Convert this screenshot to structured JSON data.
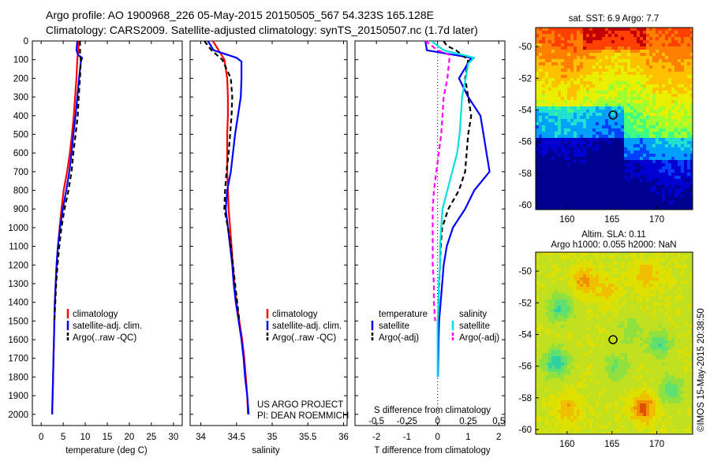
{
  "header": {
    "title_line1": "Argo profile: AO 1900968_226 05-May-2015 20150505_567 54.323S 165.128E",
    "title_line2": "Climatology: CARS2009. Satellite-adjusted climatology: synTS_20150507.nc (1.7d later)"
  },
  "colors": {
    "climatology": "#ff0000",
    "satellite": "#0000ff",
    "argo": "#000000",
    "salinity_satellite": "#00e0e0",
    "salinity_argo": "#ff00ff"
  },
  "chart_data": [
    {
      "type": "line",
      "name": "temperature",
      "xlabel": "temperature (deg C)",
      "ylabel": "",
      "xlim": [
        -2,
        32
      ],
      "ylim": [
        2060,
        0
      ],
      "x_ticks": [
        "0",
        "5",
        "10",
        "15",
        "20",
        "25",
        "30"
      ],
      "y_ticks": [
        "0",
        "100",
        "200",
        "300",
        "400",
        "500",
        "600",
        "700",
        "800",
        "900",
        "1000",
        "1100",
        "1200",
        "1300",
        "1400",
        "1500",
        "1600",
        "1700",
        "1800",
        "1900",
        "2000"
      ],
      "legend": [
        "climatology",
        "satellite-adj. clim.",
        "Argo(..raw -QC)"
      ],
      "series": [
        {
          "name": "climatology",
          "points": [
            [
              8.6,
              0
            ],
            [
              8.5,
              25
            ],
            [
              8.4,
              50
            ],
            [
              8.3,
              75
            ],
            [
              8.2,
              100
            ],
            [
              8.0,
              200
            ],
            [
              7.7,
              300
            ],
            [
              7.4,
              400
            ],
            [
              7.0,
              500
            ],
            [
              6.5,
              600
            ],
            [
              5.9,
              700
            ],
            [
              5.1,
              800
            ],
            [
              4.6,
              900
            ],
            [
              4.2,
              1000
            ],
            [
              3.8,
              1100
            ],
            [
              3.5,
              1200
            ],
            [
              3.3,
              1300
            ],
            [
              3.1,
              1400
            ],
            [
              3.0,
              1500
            ],
            [
              2.9,
              1600
            ],
            [
              2.8,
              1700
            ],
            [
              2.7,
              1800
            ],
            [
              2.6,
              1900
            ],
            [
              2.5,
              2000
            ]
          ]
        },
        {
          "name": "satellite-adj. clim.",
          "points": [
            [
              8.2,
              0
            ],
            [
              8.1,
              25
            ],
            [
              8.0,
              50
            ],
            [
              8.4,
              75
            ],
            [
              9.3,
              90
            ],
            [
              9.0,
              110
            ],
            [
              8.6,
              200
            ],
            [
              8.2,
              300
            ],
            [
              7.8,
              400
            ],
            [
              7.3,
              500
            ],
            [
              6.9,
              600
            ],
            [
              6.4,
              700
            ],
            [
              5.7,
              800
            ],
            [
              4.9,
              900
            ],
            [
              4.3,
              1000
            ],
            [
              3.8,
              1100
            ],
            [
              3.5,
              1200
            ],
            [
              3.3,
              1300
            ],
            [
              3.1,
              1400
            ],
            [
              3.0,
              1500
            ],
            [
              2.9,
              1600
            ],
            [
              2.8,
              1700
            ],
            [
              2.7,
              1800
            ],
            [
              2.6,
              1900
            ],
            [
              2.5,
              2000
            ]
          ]
        },
        {
          "name": "Argo(..raw -QC)",
          "points": [
            [
              8.8,
              0
            ],
            [
              8.8,
              50
            ],
            [
              8.8,
              75
            ],
            [
              9.0,
              100
            ],
            [
              8.8,
              200
            ],
            [
              8.5,
              300
            ],
            [
              8.3,
              400
            ],
            [
              7.8,
              500
            ],
            [
              7.3,
              600
            ],
            [
              6.9,
              700
            ],
            [
              6.2,
              800
            ],
            [
              5.3,
              900
            ],
            [
              4.6,
              1000
            ],
            [
              4.1,
              1100
            ],
            [
              3.7,
              1200
            ],
            [
              3.4,
              1300
            ],
            [
              3.2,
              1400
            ],
            [
              3.0,
              1500
            ]
          ]
        }
      ]
    },
    {
      "type": "line",
      "name": "salinity",
      "xlabel": "salinity",
      "ylabel": "",
      "xlim": [
        33.85,
        36.05
      ],
      "ylim": [
        2060,
        0
      ],
      "x_ticks": [
        "34",
        "34.5",
        "35",
        "35.5",
        "36"
      ],
      "legend": [
        "climatology",
        "satellite-adj. clim.",
        "Argo(..raw -QC)"
      ],
      "series": [
        {
          "name": "climatology",
          "points": [
            [
              34.17,
              0
            ],
            [
              34.25,
              50
            ],
            [
              34.33,
              100
            ],
            [
              34.37,
              200
            ],
            [
              34.38,
              300
            ],
            [
              34.38,
              400
            ],
            [
              34.37,
              500
            ],
            [
              34.37,
              600
            ],
            [
              34.37,
              700
            ],
            [
              34.38,
              800
            ],
            [
              34.39,
              900
            ],
            [
              34.41,
              1000
            ],
            [
              34.43,
              1100
            ],
            [
              34.45,
              1200
            ],
            [
              34.47,
              1300
            ],
            [
              34.5,
              1400
            ],
            [
              34.54,
              1500
            ],
            [
              34.58,
              1600
            ],
            [
              34.61,
              1700
            ],
            [
              34.63,
              1800
            ],
            [
              34.65,
              1900
            ],
            [
              34.66,
              2000
            ]
          ]
        },
        {
          "name": "satellite-adj. clim.",
          "points": [
            [
              34.1,
              0
            ],
            [
              34.18,
              50
            ],
            [
              34.5,
              90
            ],
            [
              34.57,
              110
            ],
            [
              34.57,
              200
            ],
            [
              34.56,
              300
            ],
            [
              34.52,
              400
            ],
            [
              34.48,
              500
            ],
            [
              34.45,
              600
            ],
            [
              34.42,
              700
            ],
            [
              34.37,
              800
            ],
            [
              34.35,
              900
            ],
            [
              34.38,
              1000
            ],
            [
              34.41,
              1100
            ],
            [
              34.44,
              1200
            ],
            [
              34.46,
              1300
            ],
            [
              34.49,
              1400
            ],
            [
              34.53,
              1500
            ],
            [
              34.57,
              1600
            ],
            [
              34.6,
              1700
            ],
            [
              34.62,
              1800
            ],
            [
              34.65,
              1900
            ],
            [
              34.67,
              2000
            ]
          ]
        },
        {
          "name": "Argo(..raw -QC)",
          "points": [
            [
              34.05,
              0
            ],
            [
              34.15,
              50
            ],
            [
              34.3,
              100
            ],
            [
              34.42,
              200
            ],
            [
              34.44,
              300
            ],
            [
              34.43,
              400
            ],
            [
              34.41,
              500
            ],
            [
              34.39,
              600
            ],
            [
              34.36,
              700
            ],
            [
              34.34,
              800
            ],
            [
              34.33,
              900
            ],
            [
              34.38,
              1000
            ],
            [
              34.42,
              1100
            ],
            [
              34.45,
              1200
            ],
            [
              34.48,
              1300
            ],
            [
              34.51,
              1400
            ],
            [
              34.54,
              1500
            ]
          ]
        }
      ],
      "annotations": [
        "US ARGO PROJECT",
        "PI: DEAN ROEMMICH"
      ]
    },
    {
      "type": "line",
      "name": "difference",
      "xlabel": "T difference from climatology",
      "x2label": "S difference from climatology",
      "xlim": [
        -2.7,
        2.2
      ],
      "x2lim": [
        -0.675,
        0.55
      ],
      "ylim": [
        2060,
        0
      ],
      "x_ticks": [
        "-2",
        "-1",
        "0",
        "1",
        "2"
      ],
      "x2_ticks": [
        "-0.5",
        "-0.25",
        "0",
        "0.25",
        "0.5"
      ],
      "legend": {
        "temperature_title": "temperature",
        "salinity_title": "salinity",
        "items": [
          "satellite",
          "Argo(-adj)",
          "satellite",
          "Argo(-adj)"
        ]
      },
      "series": [
        {
          "name": "temperature satellite",
          "axis": "T",
          "points": [
            [
              -0.4,
              0
            ],
            [
              -0.35,
              50
            ],
            [
              1.1,
              90
            ],
            [
              0.7,
              200
            ],
            [
              1.0,
              300
            ],
            [
              1.4,
              400
            ],
            [
              1.5,
              500
            ],
            [
              1.6,
              600
            ],
            [
              1.7,
              700
            ],
            [
              1.2,
              800
            ],
            [
              0.9,
              900
            ],
            [
              0.5,
              1000
            ],
            [
              0.3,
              1100
            ],
            [
              0.2,
              1200
            ],
            [
              0.15,
              1300
            ],
            [
              0.1,
              1400
            ],
            [
              0.05,
              1500
            ],
            [
              0.03,
              1600
            ],
            [
              0.02,
              1700
            ],
            [
              0.01,
              1800
            ]
          ]
        },
        {
          "name": "temperature Argo(-adj)",
          "axis": "T",
          "points": [
            [
              0.2,
              0
            ],
            [
              0.3,
              25
            ],
            [
              0.6,
              50
            ],
            [
              0.8,
              75
            ],
            [
              1.0,
              100
            ],
            [
              0.9,
              200
            ],
            [
              1.0,
              300
            ],
            [
              1.1,
              400
            ],
            [
              1.0,
              500
            ],
            [
              0.95,
              600
            ],
            [
              0.9,
              700
            ],
            [
              0.7,
              800
            ],
            [
              0.35,
              900
            ],
            [
              0.15,
              1000
            ],
            [
              0.1,
              1100
            ],
            [
              0.08,
              1200
            ],
            [
              0.05,
              1300
            ],
            [
              0.03,
              1400
            ],
            [
              0.02,
              1500
            ]
          ]
        },
        {
          "name": "salinity satellite",
          "axis": "S",
          "points": [
            [
              -0.05,
              0
            ],
            [
              0.05,
              50
            ],
            [
              0.3,
              90
            ],
            [
              0.25,
              120
            ],
            [
              0.23,
              200
            ],
            [
              0.2,
              300
            ],
            [
              0.19,
              400
            ],
            [
              0.18,
              500
            ],
            [
              0.16,
              600
            ],
            [
              0.12,
              700
            ],
            [
              0.08,
              800
            ],
            [
              0.04,
              900
            ],
            [
              0.03,
              1000
            ],
            [
              0.02,
              1100
            ],
            [
              0.02,
              1200
            ],
            [
              0.01,
              1300
            ],
            [
              0.01,
              1400
            ],
            [
              0.0,
              1500
            ],
            [
              0.0,
              1600
            ],
            [
              0.0,
              1700
            ],
            [
              0.0,
              1800
            ]
          ]
        },
        {
          "name": "salinity Argo(-adj)",
          "axis": "S",
          "points": [
            [
              -0.1,
              0
            ],
            [
              0.0,
              50
            ],
            [
              0.1,
              75
            ],
            [
              0.08,
              200
            ],
            [
              0.05,
              300
            ],
            [
              0.03,
              500
            ],
            [
              0.01,
              600
            ],
            [
              -0.01,
              700
            ],
            [
              -0.03,
              800
            ],
            [
              -0.04,
              900
            ],
            [
              -0.04,
              1000
            ],
            [
              -0.04,
              1100
            ],
            [
              -0.04,
              1200
            ],
            [
              -0.03,
              1300
            ],
            [
              -0.03,
              1400
            ],
            [
              -0.02,
              1500
            ]
          ]
        }
      ]
    },
    {
      "type": "heatmap",
      "name": "sst map",
      "title": "sat. SST: 6.9 Argo: 7.7",
      "x_ticks": [
        "160",
        "165",
        "170"
      ],
      "y_ticks": [
        "-50",
        "-52",
        "-54",
        "-56",
        "-58",
        "-60"
      ],
      "xlim": [
        156.5,
        174
      ],
      "ylim": [
        -60.3,
        -48.8
      ]
    },
    {
      "type": "heatmap",
      "name": "sla map",
      "title_line1": "Altim. SLA: 0.11",
      "title_line2": "Argo h1000: 0.055 h2000: NaN",
      "x_ticks": [
        "160",
        "165",
        "170"
      ],
      "y_ticks": [
        "-50",
        "-52",
        "-54",
        "-56",
        "-58",
        "-60"
      ],
      "xlim": [
        156.5,
        174
      ],
      "ylim": [
        -60.3,
        -48.8
      ]
    }
  ],
  "watermark": "©IMOS 15-May-2015 20:38:50"
}
